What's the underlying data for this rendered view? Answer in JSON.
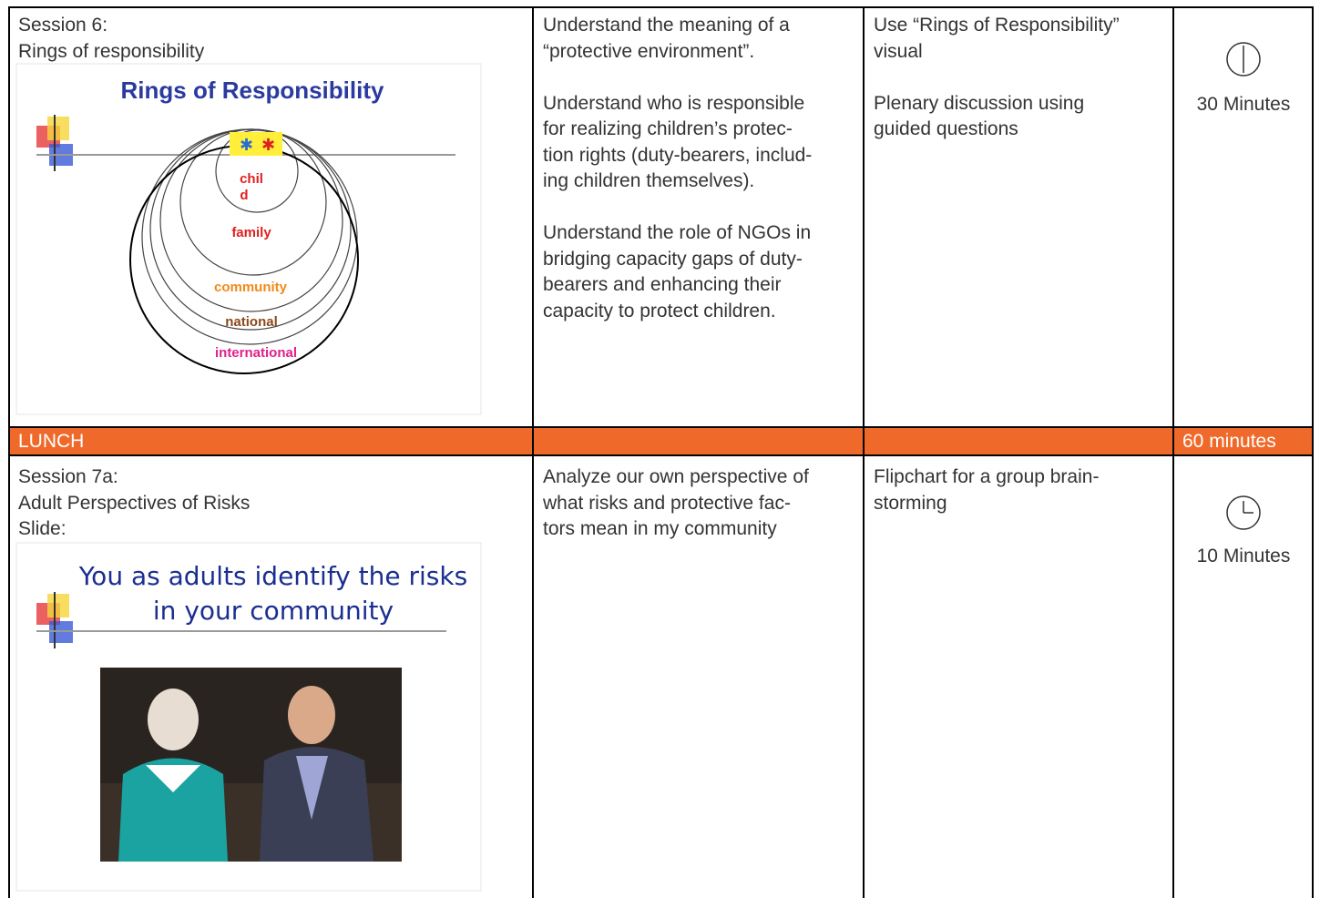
{
  "rows": [
    {
      "session": [
        "Session 6:",
        "Rings of responsibility"
      ],
      "slide": {
        "title": [
          "Rings of Responsibility"
        ],
        "rings": [
          "chil",
          "d",
          "family",
          "community",
          "national",
          "international"
        ]
      },
      "objectives": [
        [
          "Understand the meaning of a",
          "“protective environment”."
        ],
        [
          "Understand who is responsible",
          "for realizing children’s protec-",
          "tion rights (duty-bearers, includ-",
          "ing children themselves)."
        ],
        [
          "Understand the role of NGOs in",
          "bridging capacity gaps of duty-",
          "bearers and enhancing their",
          "capacity to protect children."
        ]
      ],
      "methods": [
        [
          "Use “Rings of Responsibility”",
          "visual"
        ],
        [
          "Plenary discussion using",
          "guided questions"
        ]
      ],
      "time": "30 Minutes"
    },
    {
      "label": "LUNCH",
      "time": "60 minutes"
    },
    {
      "session": [
        "Session 7a:",
        "Adult Perspectives of Risks",
        "Slide:"
      ],
      "slide": {
        "title": [
          "You as adults identify the risks",
          "in your community"
        ]
      },
      "objectives": [
        [
          "Analyze our own perspective of",
          "what risks and protective fac-",
          "tors mean in my community"
        ]
      ],
      "methods": [
        [
          "Flipchart for a group brain-",
          "storming"
        ]
      ],
      "time": "10 Minutes"
    }
  ]
}
